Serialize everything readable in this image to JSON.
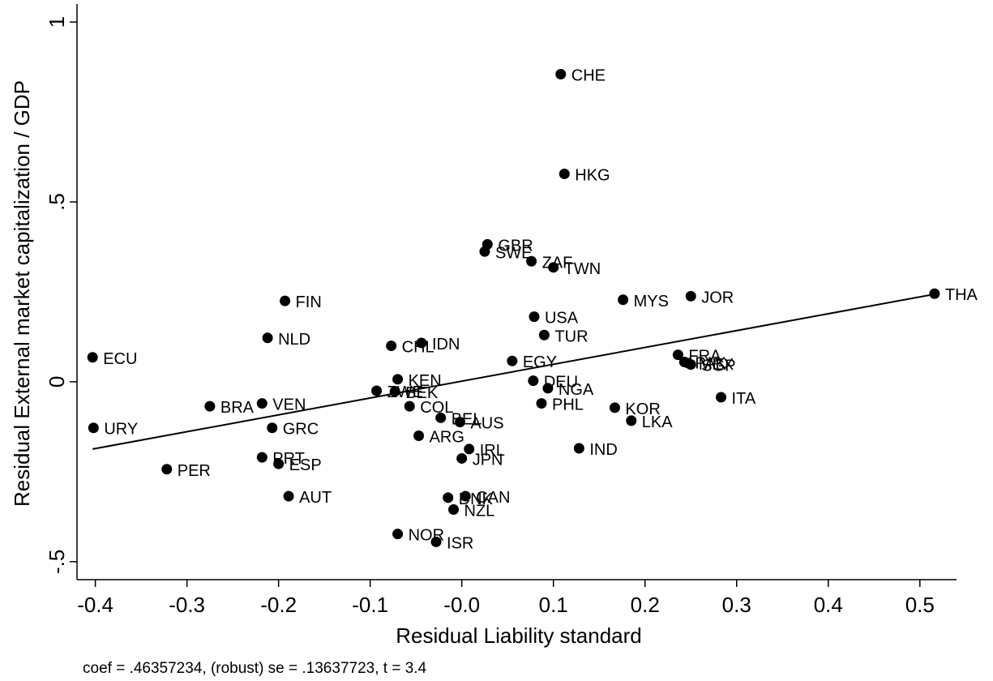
{
  "chart_data": {
    "type": "scatter",
    "title": "",
    "xlabel": "Residual Liability standard",
    "ylabel": "Residual External market capitalization / GDP",
    "xlim": [
      -0.42,
      0.54
    ],
    "ylim": [
      -0.55,
      1.05
    ],
    "x_ticks": [
      -0.4,
      -0.3,
      -0.2,
      -0.1,
      0.0,
      0.1,
      0.2,
      0.3,
      0.4,
      0.5
    ],
    "x_tick_labels": [
      "-0.4",
      "-0.3",
      "-0.2",
      "-0.1",
      "-0.0",
      "0.1",
      "0.2",
      "0.3",
      "0.4",
      "0.5"
    ],
    "y_ticks": [
      -0.5,
      0,
      0.5,
      1
    ],
    "y_tick_labels": [
      "-.5",
      "0",
      ".5",
      "1"
    ],
    "grid": false,
    "fit_line": {
      "slope": 0.46357234,
      "points": [
        [
          -0.403,
          -0.187
        ],
        [
          0.515,
          0.243
        ]
      ]
    },
    "note": "coef = .46357234, (robust) se = .13637723, t = 3.4",
    "points": [
      {
        "label": "CHE",
        "x": 0.108,
        "y": 0.855
      },
      {
        "label": "HKG",
        "x": 0.112,
        "y": 0.578
      },
      {
        "label": "GBR",
        "x": 0.028,
        "y": 0.382
      },
      {
        "label": "SWE",
        "x": 0.025,
        "y": 0.362
      },
      {
        "label": "ZAF",
        "x": 0.076,
        "y": 0.335
      },
      {
        "label": "TWN",
        "x": 0.1,
        "y": 0.318
      },
      {
        "label": "THA",
        "x": 0.516,
        "y": 0.245
      },
      {
        "label": "JOR",
        "x": 0.25,
        "y": 0.238
      },
      {
        "label": "MYS",
        "x": 0.176,
        "y": 0.228
      },
      {
        "label": "FIN",
        "x": -0.193,
        "y": 0.225
      },
      {
        "label": "USA",
        "x": 0.079,
        "y": 0.181
      },
      {
        "label": "TUR",
        "x": 0.09,
        "y": 0.13
      },
      {
        "label": "NLD",
        "x": -0.212,
        "y": 0.122
      },
      {
        "label": "IDN",
        "x": -0.044,
        "y": 0.108
      },
      {
        "label": "CHL",
        "x": -0.077,
        "y": 0.1
      },
      {
        "label": "FRA",
        "x": 0.236,
        "y": 0.075
      },
      {
        "label": "ECU",
        "x": -0.403,
        "y": 0.068
      },
      {
        "label": "EGY",
        "x": 0.055,
        "y": 0.058
      },
      {
        "label": "PAK",
        "x": 0.243,
        "y": 0.055
      },
      {
        "label": "MEX",
        "x": 0.247,
        "y": 0.052
      },
      {
        "label": "SGP",
        "x": 0.25,
        "y": 0.048
      },
      {
        "label": "KEN",
        "x": -0.07,
        "y": 0.007
      },
      {
        "label": "DEU",
        "x": 0.078,
        "y": 0.003
      },
      {
        "label": "NGA",
        "x": 0.094,
        "y": -0.018
      },
      {
        "label": "ZWE",
        "x": -0.093,
        "y": -0.025
      },
      {
        "label": "BEK",
        "x": -0.073,
        "y": -0.027
      },
      {
        "label": "ITA",
        "x": 0.283,
        "y": -0.043
      },
      {
        "label": "VEN",
        "x": -0.218,
        "y": -0.06
      },
      {
        "label": "PHL",
        "x": 0.087,
        "y": -0.06
      },
      {
        "label": "BRA",
        "x": -0.275,
        "y": -0.068
      },
      {
        "label": "COL",
        "x": -0.057,
        "y": -0.068
      },
      {
        "label": "KOR",
        "x": 0.167,
        "y": -0.072
      },
      {
        "label": "BEL",
        "x": -0.023,
        "y": -0.1
      },
      {
        "label": "LKA",
        "x": 0.185,
        "y": -0.108
      },
      {
        "label": "AUS",
        "x": -0.002,
        "y": -0.112
      },
      {
        "label": "GRC",
        "x": -0.207,
        "y": -0.128
      },
      {
        "label": "URY",
        "x": -0.402,
        "y": -0.128
      },
      {
        "label": "ARG",
        "x": -0.047,
        "y": -0.15
      },
      {
        "label": "IRL",
        "x": 0.008,
        "y": -0.187
      },
      {
        "label": "IND",
        "x": 0.128,
        "y": -0.185
      },
      {
        "label": "JPN",
        "x": 0.0,
        "y": -0.213
      },
      {
        "label": "PRT",
        "x": -0.218,
        "y": -0.21
      },
      {
        "label": "ESP",
        "x": -0.2,
        "y": -0.228
      },
      {
        "label": "PER",
        "x": -0.322,
        "y": -0.243
      },
      {
        "label": "AUT",
        "x": -0.189,
        "y": -0.318
      },
      {
        "label": "CAN",
        "x": 0.004,
        "y": -0.318
      },
      {
        "label": "DNK",
        "x": -0.015,
        "y": -0.322
      },
      {
        "label": "NZL",
        "x": -0.009,
        "y": -0.355
      },
      {
        "label": "NOR",
        "x": -0.07,
        "y": -0.423
      },
      {
        "label": "ISR",
        "x": -0.028,
        "y": -0.445
      }
    ]
  }
}
